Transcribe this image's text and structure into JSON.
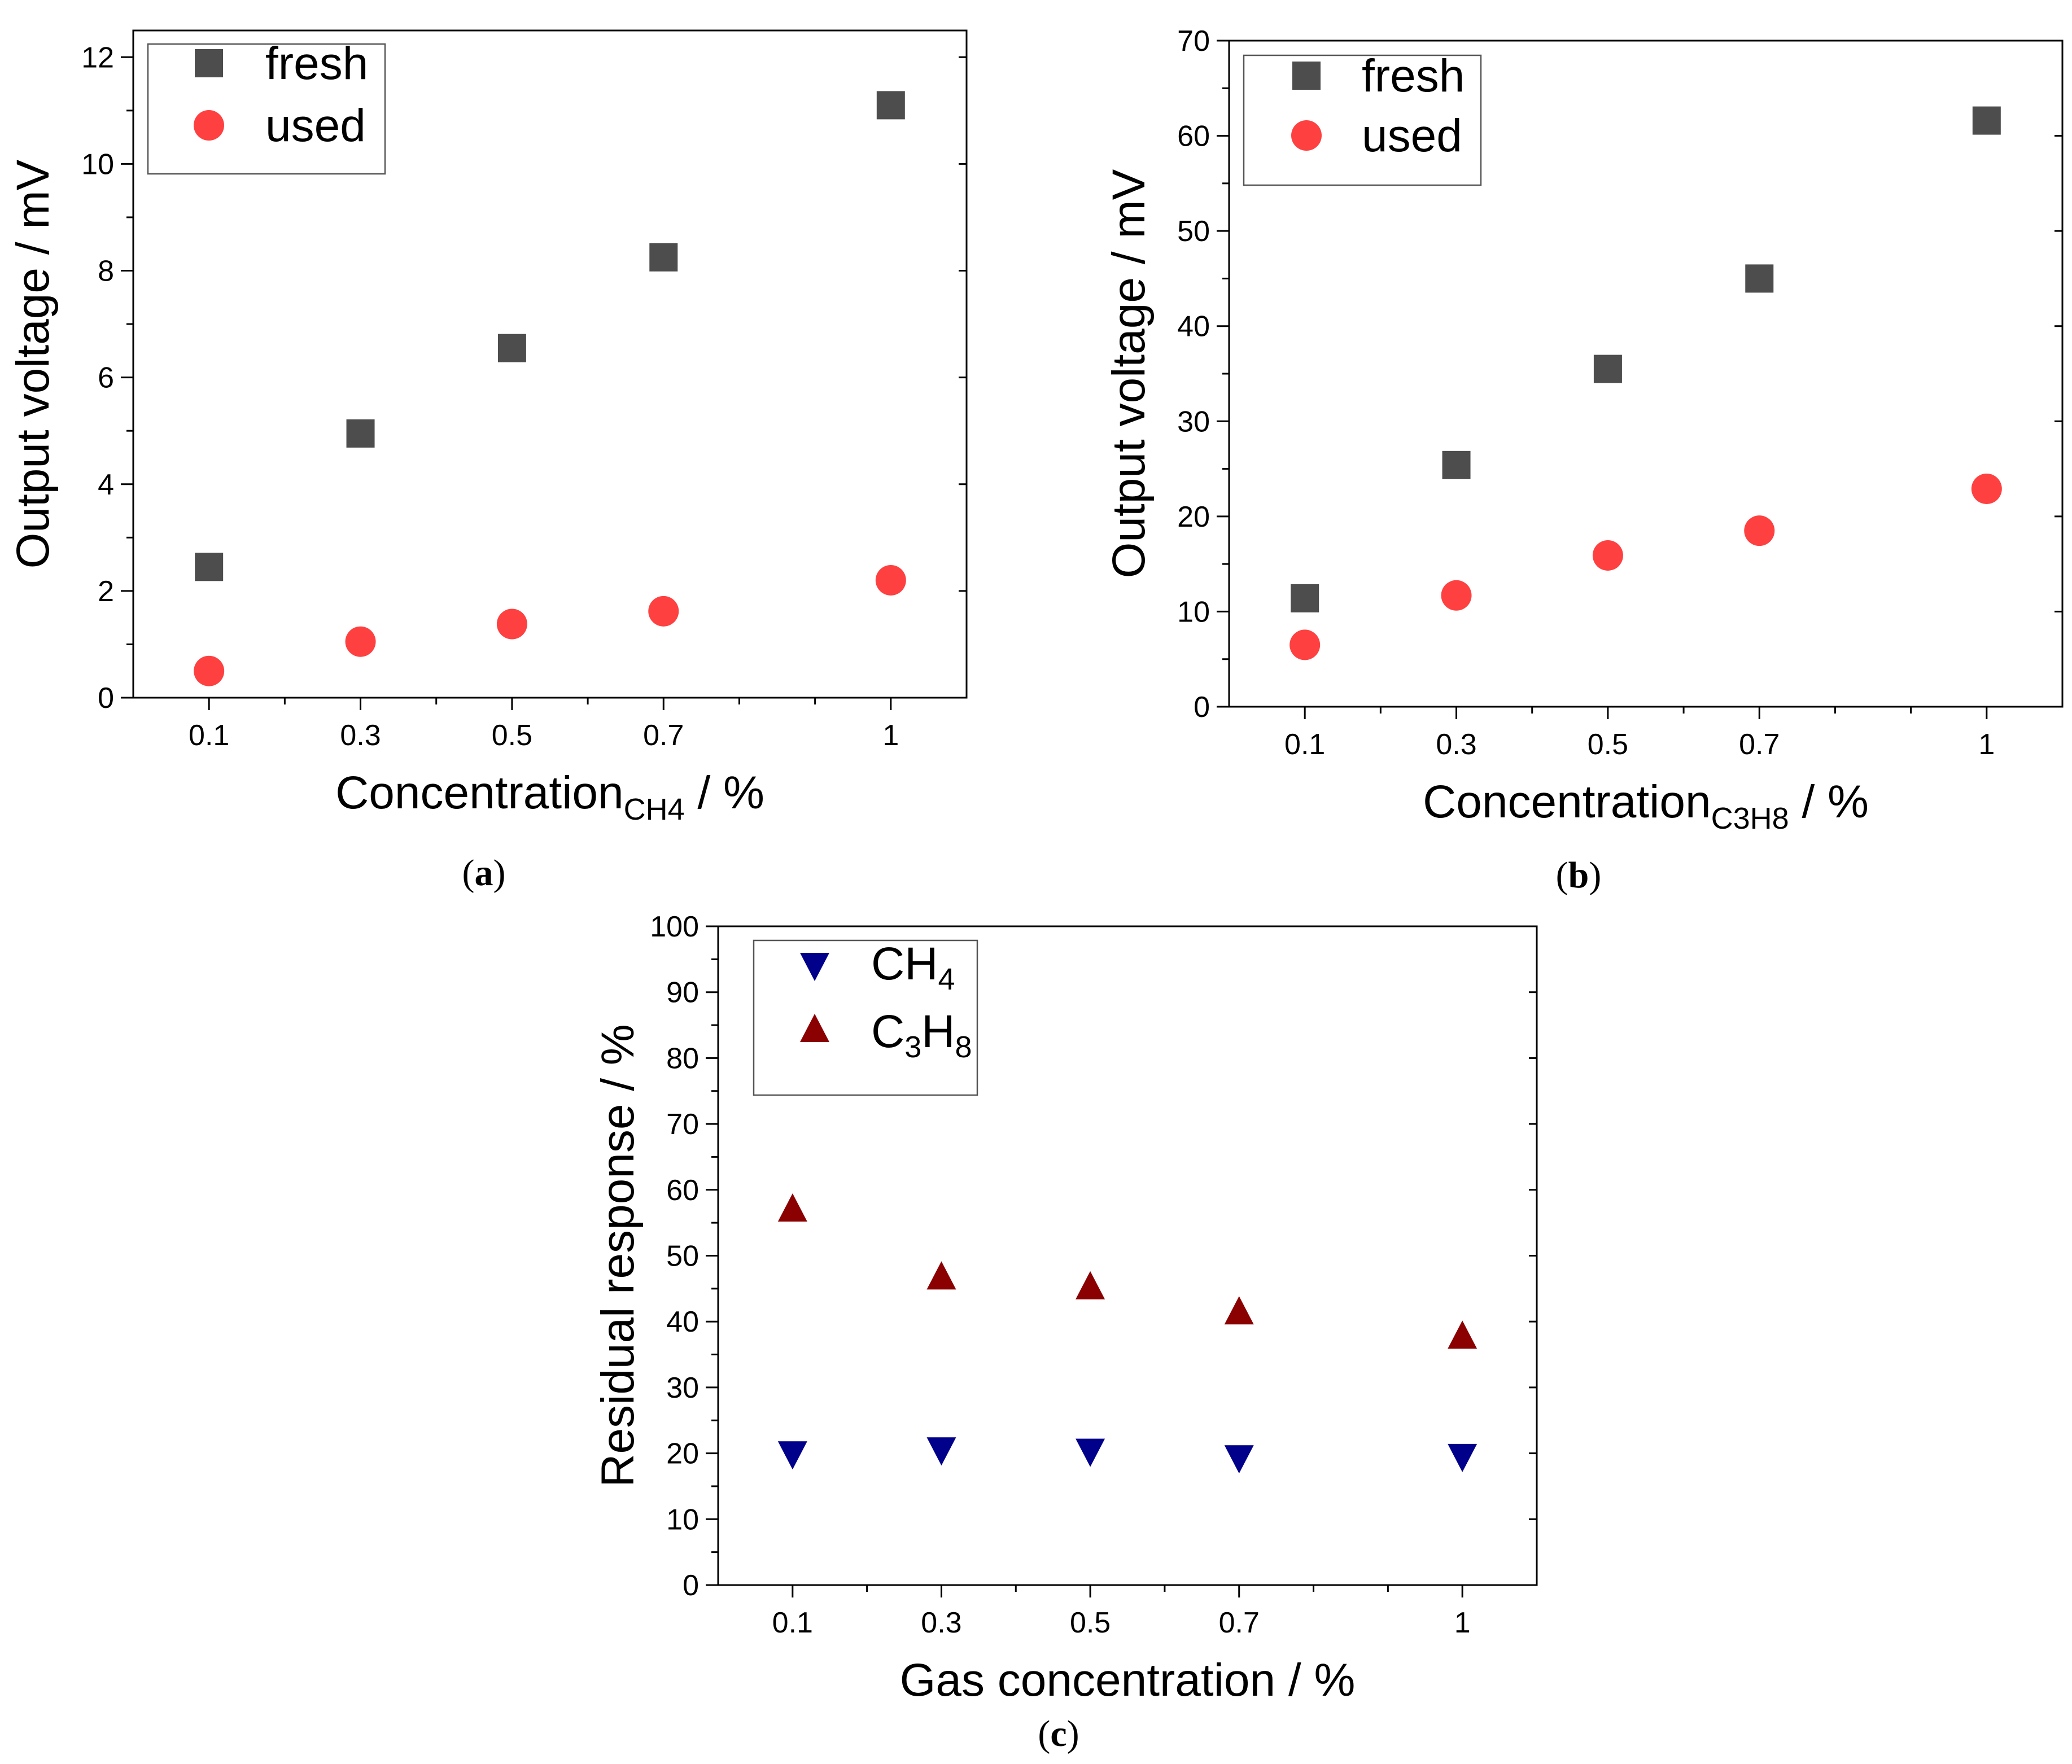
{
  "chart_data": [
    {
      "panel": "(a)",
      "panel_letter": "a",
      "type": "scatter",
      "x": [
        0.1,
        0.3,
        0.5,
        0.7,
        1
      ],
      "series": [
        {
          "name": "fresh",
          "marker": "square",
          "color": "#4d4d4d",
          "values": [
            2.45,
            4.95,
            6.55,
            8.25,
            11.1
          ]
        },
        {
          "name": "used",
          "marker": "circle",
          "color": "#ff4040",
          "values": [
            0.5,
            1.05,
            1.38,
            1.62,
            2.2
          ]
        }
      ],
      "xlabel_main": "Concentration",
      "xlabel_sub": "CH4",
      "xlabel_suffix": " / %",
      "ylabel": "Output voltage / mV",
      "xlim": [
        0,
        1.1
      ],
      "ylim": [
        0,
        12.5
      ],
      "xticks": [
        0.1,
        0.3,
        0.5,
        0.7,
        1
      ],
      "xtick_labels": [
        "0.1",
        "0.3",
        "0.5",
        "0.7",
        "1"
      ],
      "xminor": [
        0.2,
        0.4,
        0.6,
        0.8,
        0.9
      ],
      "yticks": [
        0,
        2,
        4,
        6,
        8,
        10,
        12
      ],
      "ytick_labels": [
        "0",
        "2",
        "4",
        "6",
        "8",
        "10",
        "12"
      ],
      "yminor": [
        1,
        3,
        5,
        7,
        9,
        11
      ],
      "legend_position": "top-left"
    },
    {
      "panel": "(b)",
      "panel_letter": "b",
      "type": "scatter",
      "x": [
        0.1,
        0.3,
        0.5,
        0.7,
        1
      ],
      "series": [
        {
          "name": "fresh",
          "marker": "square",
          "color": "#4d4d4d",
          "values": [
            11.4,
            25.4,
            35.5,
            45.0,
            61.6
          ]
        },
        {
          "name": "used",
          "marker": "circle",
          "color": "#ff4040",
          "values": [
            6.5,
            11.7,
            15.9,
            18.5,
            22.9
          ]
        }
      ],
      "xlabel_main": "Concentration",
      "xlabel_sub": "C3H8",
      "xlabel_suffix": " / %",
      "ylabel": "Output voltage / mV",
      "xlim": [
        0,
        1.1
      ],
      "ylim": [
        0,
        70
      ],
      "xticks": [
        0.1,
        0.3,
        0.5,
        0.7,
        1
      ],
      "xtick_labels": [
        "0.1",
        "0.3",
        "0.5",
        "0.7",
        "1"
      ],
      "xminor": [
        0.2,
        0.4,
        0.6,
        0.8,
        0.9
      ],
      "yticks": [
        0,
        10,
        20,
        30,
        40,
        50,
        60,
        70
      ],
      "ytick_labels": [
        "0",
        "10",
        "20",
        "30",
        "40",
        "50",
        "60",
        "70"
      ],
      "yminor": [
        5,
        15,
        25,
        35,
        45,
        55,
        65
      ],
      "legend_position": "top-left"
    },
    {
      "panel": "(c)",
      "panel_letter": "c",
      "type": "scatter",
      "x": [
        0.1,
        0.3,
        0.5,
        0.7,
        1
      ],
      "series": [
        {
          "name": "CH4",
          "label_parts": [
            [
              "CH",
              ""
            ],
            [
              "4",
              "sub"
            ]
          ],
          "marker": "triangle-down",
          "color": "#00008b",
          "values": [
            20.2,
            20.8,
            20.6,
            19.6,
            19.8
          ]
        },
        {
          "name": "C3H8",
          "label_parts": [
            [
              "C",
              ""
            ],
            [
              "3",
              "sub"
            ],
            [
              "H",
              ""
            ],
            [
              "8",
              "sub"
            ]
          ],
          "marker": "triangle-up",
          "color": "#8b0000",
          "values": [
            56.8,
            46.5,
            45.0,
            41.2,
            37.5
          ]
        }
      ],
      "xlabel_main": "Gas concentration / %",
      "xlabel_sub": "",
      "xlabel_suffix": "",
      "ylabel": "Residual response / %",
      "xlim": [
        0,
        1.1
      ],
      "ylim": [
        0,
        100
      ],
      "xticks": [
        0.1,
        0.3,
        0.5,
        0.7,
        1
      ],
      "xtick_labels": [
        "0.1",
        "0.3",
        "0.5",
        "0.7",
        "1"
      ],
      "xminor": [
        0.2,
        0.4,
        0.6,
        0.8,
        0.9
      ],
      "yticks": [
        0,
        10,
        20,
        30,
        40,
        50,
        60,
        70,
        80,
        90,
        100
      ],
      "ytick_labels": [
        "0",
        "10",
        "20",
        "30",
        "40",
        "50",
        "60",
        "70",
        "80",
        "90",
        "100"
      ],
      "yminor": [
        5,
        15,
        25,
        35,
        45,
        55,
        65,
        75,
        85,
        95
      ],
      "legend_position": "top-left"
    }
  ]
}
